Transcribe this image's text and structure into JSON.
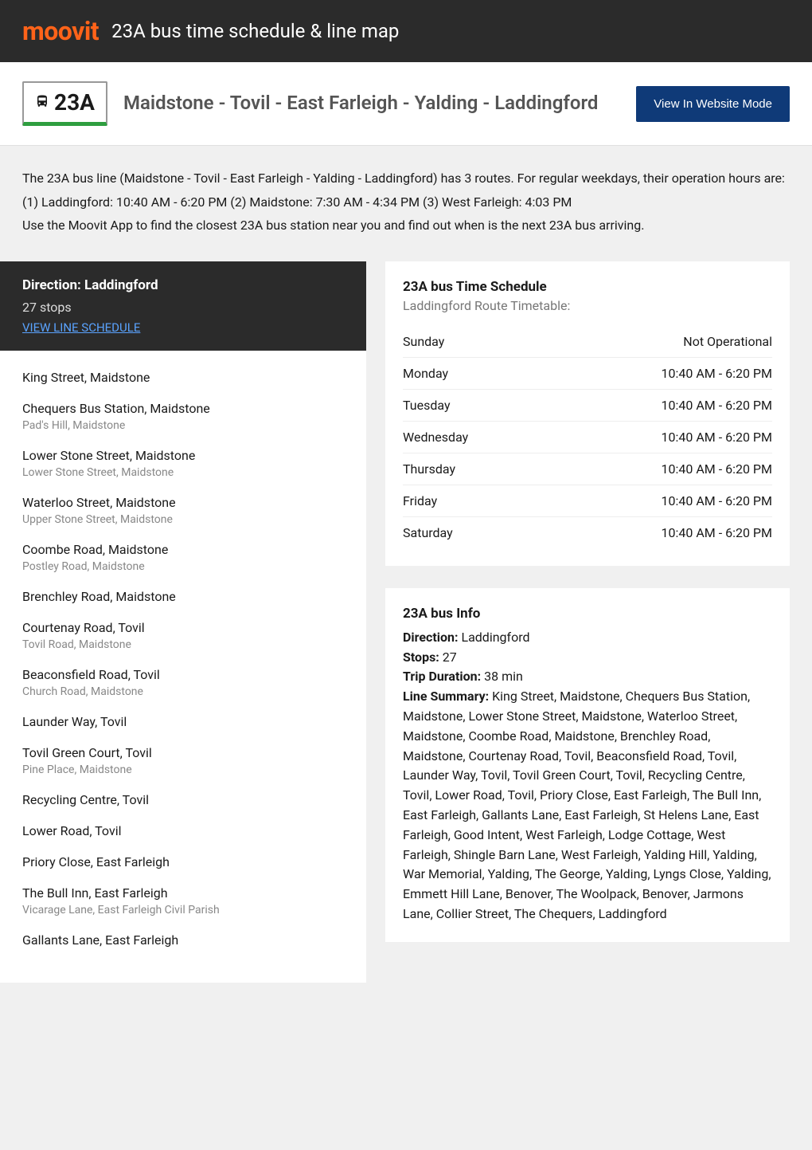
{
  "header": {
    "logo_text": "moovit",
    "title": "23A bus time schedule & line map"
  },
  "route_header": {
    "badge_icon": "bus-icon",
    "badge_number": "23A",
    "title": "Maidstone - Tovil - East Farleigh - Yalding - Laddingford",
    "button_label": "View In Website Mode",
    "accent_color": "#2e9e3f",
    "button_bg": "#0f3a78"
  },
  "intro": {
    "p1": "The 23A bus line (Maidstone - Tovil - East Farleigh - Yalding - Laddingford) has 3 routes. For regular weekdays, their operation hours are:",
    "p2": "(1) Laddingford: 10:40 AM - 6:20 PM (2) Maidstone: 7:30 AM - 4:34 PM (3) West Farleigh: 4:03 PM",
    "p3": "Use the Moovit App to find the closest 23A bus station near you and find out when is the next 23A bus arriving."
  },
  "direction_panel": {
    "title": "Direction: Laddingford",
    "stops_count": "27 stops",
    "link_text": "VIEW LINE SCHEDULE"
  },
  "stops": [
    {
      "name": "King Street, Maidstone",
      "sub": ""
    },
    {
      "name": "Chequers Bus Station, Maidstone",
      "sub": "Pad's Hill, Maidstone"
    },
    {
      "name": "Lower Stone Street, Maidstone",
      "sub": "Lower Stone Street, Maidstone"
    },
    {
      "name": "Waterloo Street, Maidstone",
      "sub": "Upper Stone Street, Maidstone"
    },
    {
      "name": "Coombe Road, Maidstone",
      "sub": "Postley Road, Maidstone"
    },
    {
      "name": "Brenchley Road, Maidstone",
      "sub": ""
    },
    {
      "name": "Courtenay Road, Tovil",
      "sub": "Tovil Road, Maidstone"
    },
    {
      "name": "Beaconsfield Road, Tovil",
      "sub": "Church Road, Maidstone"
    },
    {
      "name": "Launder Way, Tovil",
      "sub": ""
    },
    {
      "name": "Tovil Green Court, Tovil",
      "sub": "Pine Place, Maidstone"
    },
    {
      "name": "Recycling Centre, Tovil",
      "sub": ""
    },
    {
      "name": "Lower Road, Tovil",
      "sub": ""
    },
    {
      "name": "Priory Close, East Farleigh",
      "sub": ""
    },
    {
      "name": "The Bull Inn, East Farleigh",
      "sub": "Vicarage Lane, East Farleigh Civil Parish"
    },
    {
      "name": "Gallants Lane, East Farleigh",
      "sub": ""
    }
  ],
  "schedule": {
    "title": "23A bus Time Schedule",
    "subtitle": "Laddingford Route Timetable:",
    "rows": [
      {
        "day": "Sunday",
        "time": "Not Operational"
      },
      {
        "day": "Monday",
        "time": "10:40 AM - 6:20 PM"
      },
      {
        "day": "Tuesday",
        "time": "10:40 AM - 6:20 PM"
      },
      {
        "day": "Wednesday",
        "time": "10:40 AM - 6:20 PM"
      },
      {
        "day": "Thursday",
        "time": "10:40 AM - 6:20 PM"
      },
      {
        "day": "Friday",
        "time": "10:40 AM - 6:20 PM"
      },
      {
        "day": "Saturday",
        "time": "10:40 AM - 6:20 PM"
      }
    ]
  },
  "info": {
    "title": "23A bus Info",
    "direction_label": "Direction:",
    "direction_value": "Laddingford",
    "stops_label": "Stops:",
    "stops_value": "27",
    "duration_label": "Trip Duration:",
    "duration_value": "38 min",
    "summary_label": "Line Summary:",
    "summary_value": "King Street, Maidstone, Chequers Bus Station, Maidstone, Lower Stone Street, Maidstone, Waterloo Street, Maidstone, Coombe Road, Maidstone, Brenchley Road, Maidstone, Courtenay Road, Tovil, Beaconsfield Road, Tovil, Launder Way, Tovil, Tovil Green Court, Tovil, Recycling Centre, Tovil, Lower Road, Tovil, Priory Close, East Farleigh, The Bull Inn, East Farleigh, Gallants Lane, East Farleigh, St Helens Lane, East Farleigh, Good Intent, West Farleigh, Lodge Cottage, West Farleigh, Shingle Barn Lane, West Farleigh, Yalding Hill, Yalding, War Memorial, Yalding, The George, Yalding, Lyngs Close, Yalding, Emmett Hill Lane, Benover, The Woolpack, Benover, Jarmons Lane, Collier Street, The Chequers, Laddingford"
  },
  "colors": {
    "header_bg": "#2b2b2b",
    "logo_color": "#ff6319",
    "page_bg": "#f0f0f0",
    "card_bg": "#ffffff",
    "link_color": "#5aa3ff",
    "text_primary": "#1a1a1a",
    "text_secondary": "#777",
    "text_muted": "#888"
  }
}
